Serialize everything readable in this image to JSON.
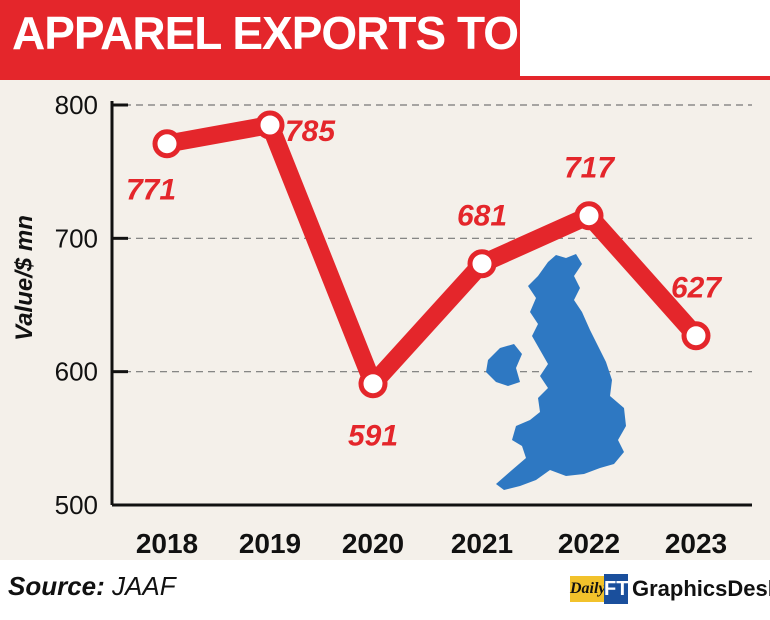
{
  "header": {
    "title": "APPAREL EXPORTS TO UK"
  },
  "footer": {
    "source_label": "Source:",
    "source_value": "JAAF",
    "brand_daily": "Daily",
    "brand_ft": "FT",
    "brand_name": "GraphicsDesk"
  },
  "colors": {
    "accent": "#e4262b",
    "panel": "#f4f0ea",
    "map": "#2e78c2"
  },
  "chart_data": {
    "type": "line",
    "title": "APPAREL EXPORTS TO UK",
    "xlabel": "",
    "ylabel": "Value/$ mn",
    "categories": [
      "2018",
      "2019",
      "2020",
      "2021",
      "2022",
      "2023"
    ],
    "values": [
      771,
      785,
      591,
      681,
      717,
      627
    ],
    "data_labels": [
      "771",
      "785",
      "591",
      "681",
      "717",
      "627"
    ],
    "ylim": [
      500,
      800
    ],
    "yticks": [
      "500",
      "600",
      "700",
      "800"
    ],
    "grid": "dashed-horizontal",
    "legend": "none",
    "decoration": "uk-map-icon"
  }
}
